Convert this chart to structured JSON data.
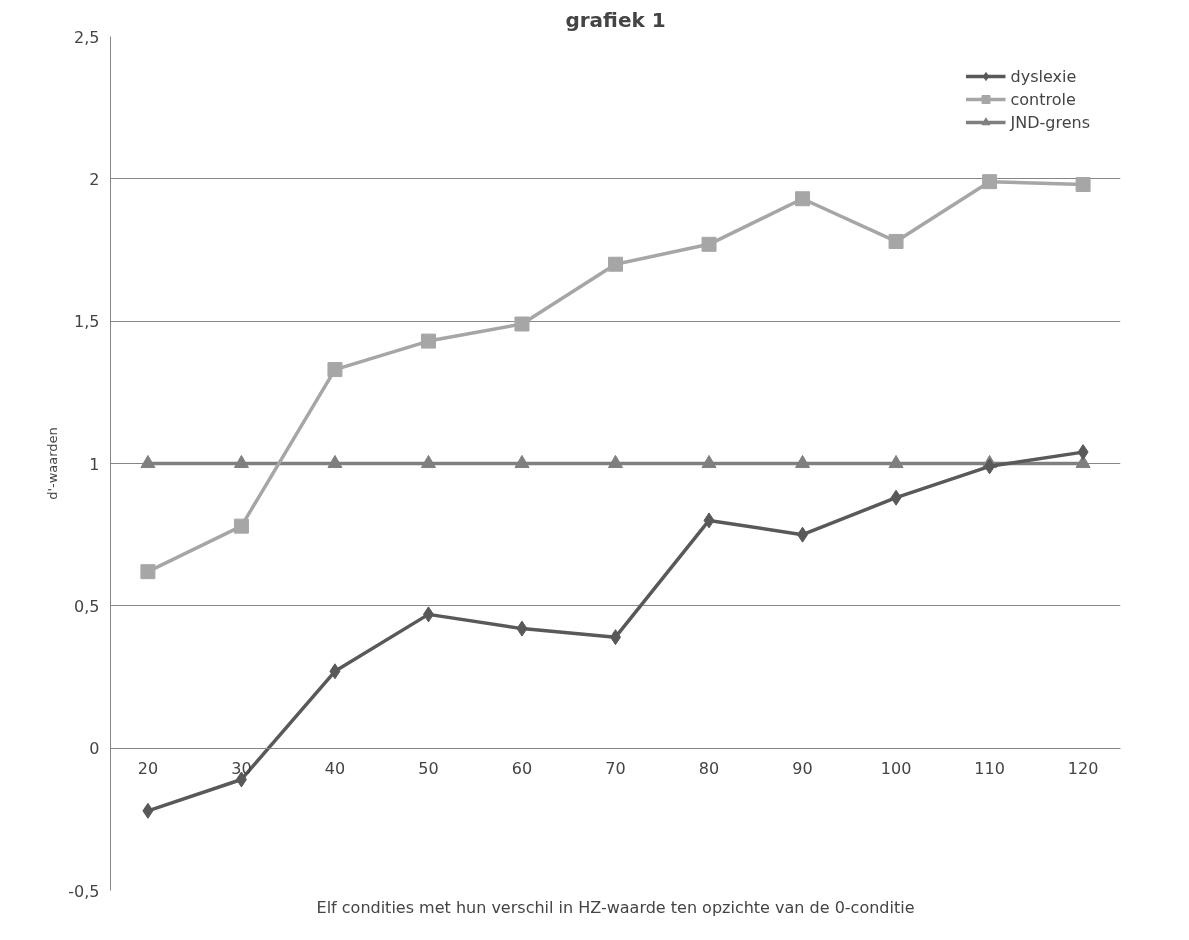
{
  "chart_data": {
    "type": "line",
    "title": "grafiek 1",
    "xlabel": "Elf condities met hun verschil in HZ-waarde ten opzichte van de 0-conditie",
    "ylabel": "d'-waarden",
    "categories": [
      "20",
      "30",
      "40",
      "50",
      "60",
      "70",
      "80",
      "90",
      "100",
      "110",
      "120"
    ],
    "series": [
      {
        "name": "dyslexie",
        "color": "#595959",
        "marker": "diamond",
        "values": [
          -0.22,
          -0.11,
          0.27,
          0.47,
          0.42,
          0.39,
          0.8,
          0.75,
          0.88,
          0.99,
          1.04
        ]
      },
      {
        "name": "controle",
        "color": "#a6a6a6",
        "marker": "square",
        "values": [
          0.62,
          0.78,
          1.33,
          1.43,
          1.49,
          1.7,
          1.77,
          1.93,
          1.78,
          1.99,
          1.98
        ]
      },
      {
        "name": "JND-grens",
        "color": "#7f7f7f",
        "marker": "triangle",
        "values": [
          1,
          1,
          1,
          1,
          1,
          1,
          1,
          1,
          1,
          1,
          1
        ]
      }
    ],
    "ylim": [
      -0.5,
      2.5
    ],
    "yticks": [
      {
        "value": -0.5,
        "label": "-0,5"
      },
      0,
      {
        "value": 0.5,
        "label": "0,5"
      },
      1,
      {
        "value": 1.5,
        "label": "1,5"
      },
      2,
      {
        "value": 2.5,
        "label": "2,5"
      }
    ],
    "grid": "y",
    "legend": "top right",
    "line_style": "solid"
  }
}
